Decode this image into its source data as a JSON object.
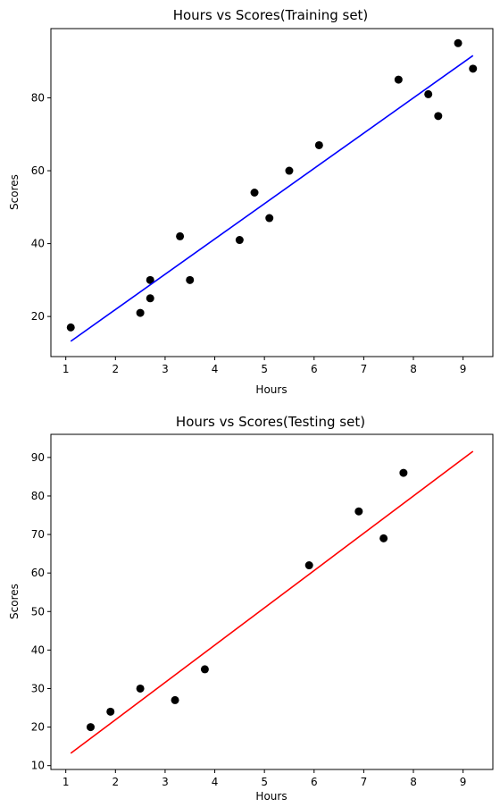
{
  "chart_data": [
    {
      "type": "scatter",
      "title": "Hours vs Scores(Training set)",
      "xlabel": "Hours",
      "ylabel": "Scores",
      "xlim": [
        0.7,
        9.6
      ],
      "ylim": [
        9,
        99
      ],
      "xticks": [
        1,
        2,
        3,
        4,
        5,
        6,
        7,
        8,
        9
      ],
      "yticks": [
        20,
        40,
        60,
        80
      ],
      "grid": false,
      "series": [
        {
          "kind": "scatter",
          "color": "#000000",
          "points": [
            [
              1.1,
              17
            ],
            [
              2.5,
              21
            ],
            [
              2.7,
              25
            ],
            [
              2.7,
              30
            ],
            [
              3.3,
              42
            ],
            [
              3.5,
              30
            ],
            [
              4.5,
              41
            ],
            [
              4.8,
              54
            ],
            [
              5.1,
              47
            ],
            [
              5.5,
              60
            ],
            [
              6.1,
              67
            ],
            [
              7.7,
              85
            ],
            [
              8.3,
              81
            ],
            [
              8.5,
              75
            ],
            [
              8.9,
              95
            ],
            [
              9.2,
              88
            ]
          ]
        },
        {
          "kind": "line",
          "color": "#0000ff",
          "points": [
            [
              1.1,
              13.2
            ],
            [
              9.2,
              91.6
            ]
          ]
        }
      ]
    },
    {
      "type": "scatter",
      "title": "Hours vs Scores(Testing set)",
      "xlabel": "Hours",
      "ylabel": "Scores",
      "xlim": [
        0.7,
        9.6
      ],
      "ylim": [
        9,
        96
      ],
      "xticks": [
        1,
        2,
        3,
        4,
        5,
        6,
        7,
        8,
        9
      ],
      "yticks": [
        10,
        20,
        30,
        40,
        50,
        60,
        70,
        80,
        90
      ],
      "grid": false,
      "series": [
        {
          "kind": "scatter",
          "color": "#000000",
          "points": [
            [
              1.5,
              20
            ],
            [
              1.9,
              24
            ],
            [
              2.5,
              30
            ],
            [
              3.2,
              27
            ],
            [
              3.8,
              35
            ],
            [
              5.9,
              62
            ],
            [
              6.9,
              76
            ],
            [
              7.4,
              69
            ],
            [
              7.8,
              86
            ]
          ]
        },
        {
          "kind": "line",
          "color": "#ff0000",
          "points": [
            [
              1.1,
              13.2
            ],
            [
              9.2,
              91.6
            ]
          ]
        }
      ]
    }
  ]
}
